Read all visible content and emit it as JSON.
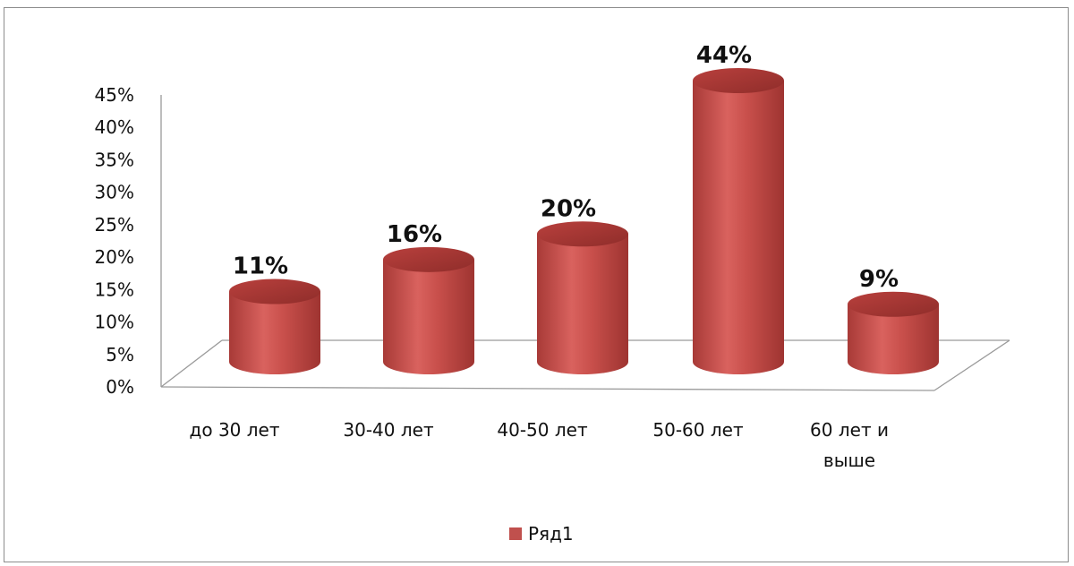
{
  "chart_data": {
    "type": "bar",
    "style": "3d-cylinder",
    "categories": [
      "до 30 лет",
      "30-40 лет",
      "40-50 лет",
      "50-60 лет",
      "60 лет и выше"
    ],
    "category_lines": [
      [
        "до 30 лет"
      ],
      [
        "30-40 лет"
      ],
      [
        "40-50 лет"
      ],
      [
        "50-60 лет"
      ],
      [
        "60 лет и",
        "выше"
      ]
    ],
    "series": [
      {
        "name": "Ряд1",
        "values": [
          11,
          16,
          20,
          44,
          9
        ],
        "color": "#c0504d"
      }
    ],
    "data_labels": [
      "11%",
      "16%",
      "20%",
      "44%",
      "9%"
    ],
    "y_ticks": [
      "0%",
      "5%",
      "10%",
      "15%",
      "20%",
      "25%",
      "30%",
      "35%",
      "40%",
      "45%"
    ],
    "ylim": [
      0,
      45
    ],
    "grid": false,
    "legend_position": "bottom"
  }
}
